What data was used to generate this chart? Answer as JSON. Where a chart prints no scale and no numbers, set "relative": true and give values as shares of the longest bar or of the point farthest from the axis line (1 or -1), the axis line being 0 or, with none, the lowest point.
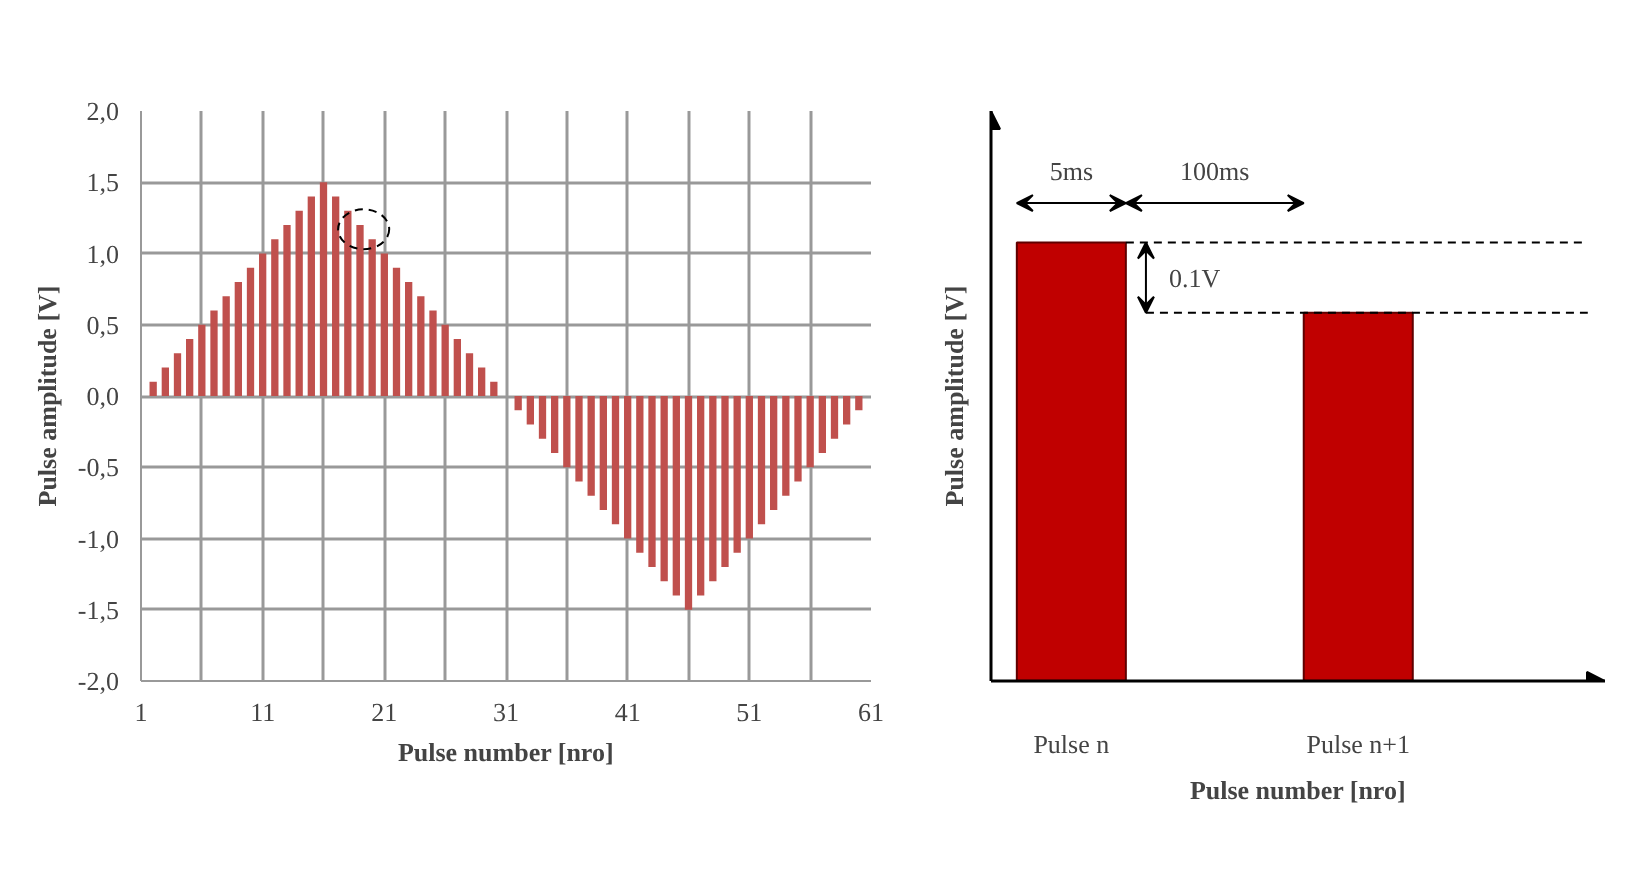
{
  "chart_data": [
    {
      "type": "bar",
      "xlabel": "Pulse number [nro]",
      "ylabel": "Pulse amplitude [V]",
      "x": [
        2,
        3,
        4,
        5,
        6,
        7,
        8,
        9,
        10,
        11,
        12,
        13,
        14,
        15,
        16,
        17,
        18,
        19,
        20,
        21,
        22,
        23,
        24,
        25,
        26,
        27,
        28,
        29,
        30,
        31,
        32,
        33,
        34,
        35,
        36,
        37,
        38,
        39,
        40,
        41,
        42,
        43,
        44,
        45,
        46,
        47,
        48,
        49,
        50,
        51,
        52,
        53,
        54,
        55,
        56,
        57,
        58,
        59,
        60
      ],
      "values": [
        0.1,
        0.2,
        0.3,
        0.4,
        0.5,
        0.6,
        0.7,
        0.8,
        0.9,
        1.0,
        1.1,
        1.2,
        1.3,
        1.4,
        1.5,
        1.4,
        1.3,
        1.2,
        1.1,
        1.0,
        0.9,
        0.8,
        0.7,
        0.6,
        0.5,
        0.4,
        0.3,
        0.2,
        0.1,
        0.0,
        -0.1,
        -0.2,
        -0.3,
        -0.4,
        -0.5,
        -0.6,
        -0.7,
        -0.8,
        -0.9,
        -1.0,
        -1.1,
        -1.2,
        -1.3,
        -1.4,
        -1.5,
        -1.4,
        -1.3,
        -1.2,
        -1.1,
        -1.0,
        -0.9,
        -0.8,
        -0.7,
        -0.6,
        -0.5,
        -0.4,
        -0.3,
        -0.2,
        -0.1
      ],
      "color": "#c0504d",
      "xlim": [
        1,
        61
      ],
      "xticks": [
        1,
        {
          "value": 6,
          "label": null
        },
        11,
        {
          "value": 16,
          "label": null
        },
        21,
        {
          "value": 26,
          "label": null
        },
        31,
        {
          "value": 36,
          "label": null
        },
        41,
        {
          "value": 46,
          "label": null
        },
        51,
        {
          "value": 56,
          "label": null
        },
        61
      ],
      "ylim": [
        -2,
        2
      ],
      "yticks": [
        {
          "value": -2,
          "label": "-2,0"
        },
        {
          "value": -1.5,
          "label": "-1,5"
        },
        {
          "value": -1,
          "label": "-1,0"
        },
        {
          "value": -0.5,
          "label": "-0,5"
        },
        {
          "value": 0,
          "label": "0,0"
        },
        {
          "value": 0.5,
          "label": "0,5"
        },
        {
          "value": 1,
          "label": "1,0"
        },
        {
          "value": 1.5,
          "label": "1,5"
        },
        {
          "value": 2,
          "label": "2,0"
        }
      ],
      "grid": true
    },
    {
      "type": "bar",
      "relative": true,
      "xlabel": "Pulse number [nro]",
      "ylabel": "Pulse amplitude [V]",
      "categories": [
        "Pulse n",
        "Pulse n+1"
      ],
      "values": [
        1,
        0.84
      ],
      "color": "#c00000",
      "annotations": [
        "5ms",
        "100ms",
        "0.1V"
      ],
      "ref_lines": [
        {
          "axis": "y",
          "value": 1,
          "label": null,
          "line_style": "dashed"
        },
        {
          "axis": "y",
          "value": 0.84,
          "label": null,
          "line_style": "dashed"
        }
      ]
    }
  ]
}
